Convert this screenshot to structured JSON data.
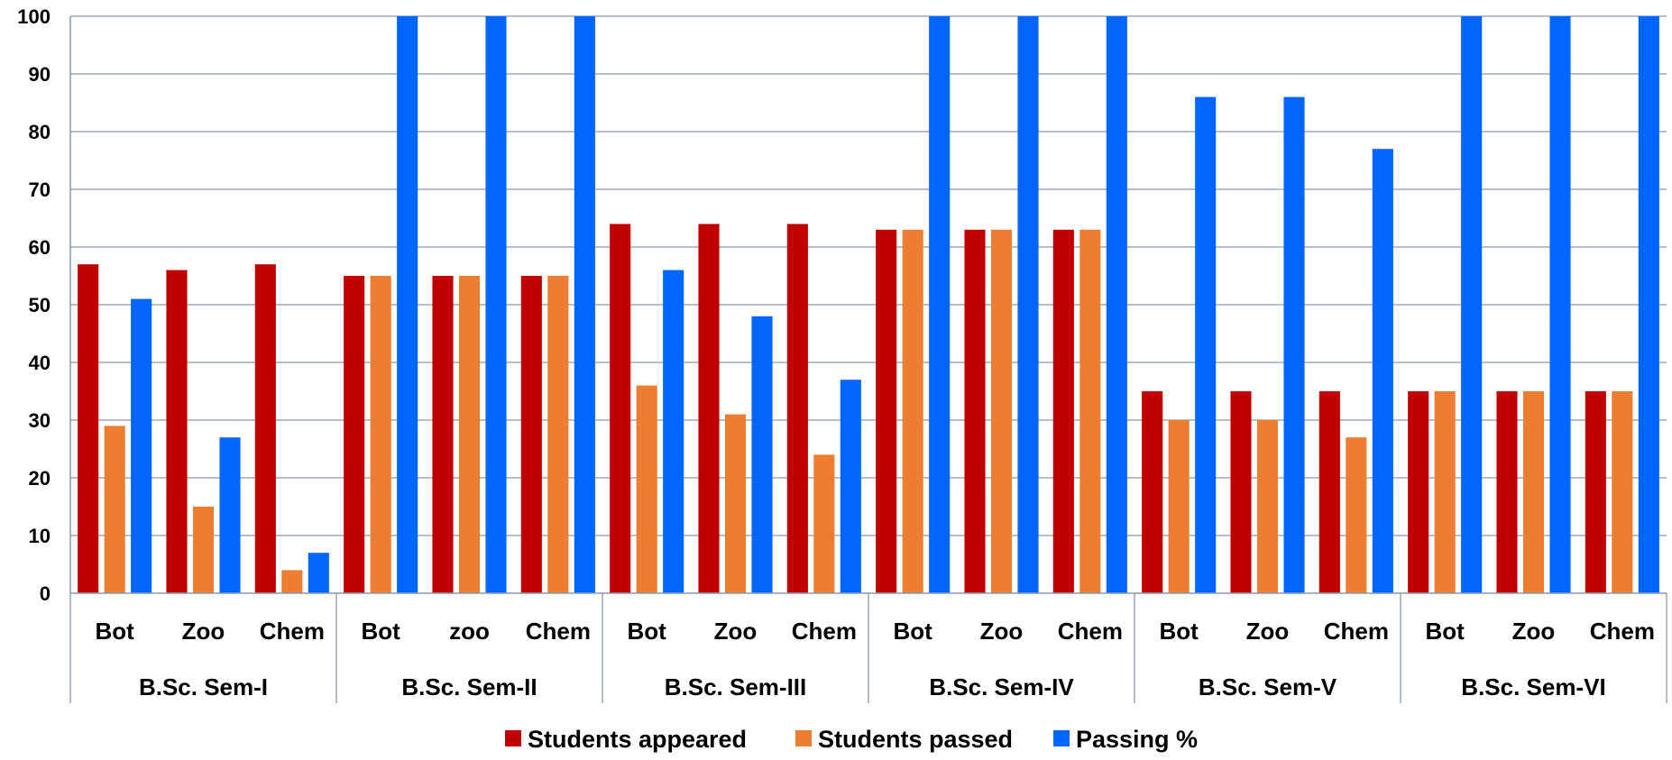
{
  "chart_data": {
    "type": "bar",
    "title": "",
    "xlabel": "",
    "ylabel": "",
    "ylim": [
      0,
      100
    ],
    "yticks": [
      "0",
      "10",
      "20",
      "30",
      "40",
      "50",
      "60",
      "70",
      "80",
      "90",
      "100"
    ],
    "grid": true,
    "legend_position": "bottom",
    "groups": [
      {
        "label": "B.Sc. Sem-I",
        "categories": [
          "Bot",
          "Zoo",
          "Chem"
        ]
      },
      {
        "label": "B.Sc. Sem-II",
        "categories": [
          "Bot",
          "zoo",
          "Chem"
        ]
      },
      {
        "label": "B.Sc. Sem-III",
        "categories": [
          "Bot",
          "Zoo",
          "Chem"
        ]
      },
      {
        "label": "B.Sc. Sem-IV",
        "categories": [
          "Bot",
          "Zoo",
          "Chem"
        ]
      },
      {
        "label": "B.Sc. Sem-V",
        "categories": [
          "Bot",
          "Zoo",
          "Chem"
        ]
      },
      {
        "label": "B.Sc. Sem-VI",
        "categories": [
          "Bot",
          "Zoo",
          "Chem"
        ]
      }
    ],
    "series": [
      {
        "name": "Students appeared",
        "color": "#c00000",
        "values": [
          57,
          56,
          57,
          55,
          55,
          55,
          64,
          64,
          64,
          63,
          63,
          63,
          35,
          35,
          35,
          35,
          35,
          35
        ]
      },
      {
        "name": "Students passed",
        "color": "#ed7d31",
        "values": [
          29,
          15,
          4,
          55,
          55,
          55,
          36,
          31,
          24,
          63,
          63,
          63,
          30,
          30,
          27,
          35,
          35,
          35
        ]
      },
      {
        "name": "Passing %",
        "color": "#0066ff",
        "values": [
          51,
          27,
          7,
          100,
          100,
          100,
          56,
          48,
          37,
          100,
          100,
          100,
          86,
          86,
          77,
          100,
          100,
          100
        ]
      }
    ]
  }
}
